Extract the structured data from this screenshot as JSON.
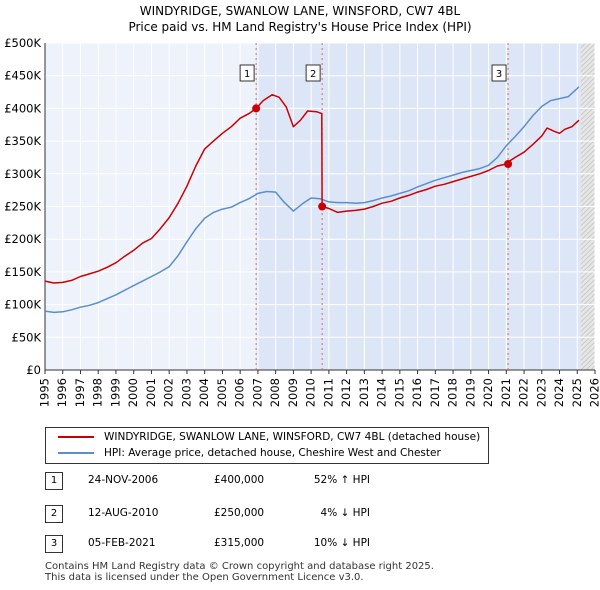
{
  "chart_data": {
    "type": "line",
    "title": "WINDYRIDGE, SWANLOW LANE, WINSFORD, CW7 4BL",
    "subtitle": "Price paid vs. HM Land Registry's House Price Index (HPI)",
    "xlabel": "",
    "ylabel": "",
    "xlim": [
      1995,
      2026
    ],
    "ylim": [
      0,
      500000
    ],
    "x_ticks": [
      "1995",
      "1996",
      "1997",
      "1998",
      "1999",
      "2000",
      "2001",
      "2002",
      "2003",
      "2004",
      "2005",
      "2006",
      "2007",
      "2008",
      "2009",
      "2010",
      "2011",
      "2012",
      "2013",
      "2014",
      "2015",
      "2016",
      "2017",
      "2018",
      "2019",
      "2020",
      "2021",
      "2022",
      "2023",
      "2024",
      "2025",
      "2026"
    ],
    "y_ticks": [
      {
        "value": 0,
        "label": "£0"
      },
      {
        "value": 50000,
        "label": "£50K"
      },
      {
        "value": 100000,
        "label": "£100K"
      },
      {
        "value": 150000,
        "label": "£150K"
      },
      {
        "value": 200000,
        "label": "£200K"
      },
      {
        "value": 250000,
        "label": "£250K"
      },
      {
        "value": 300000,
        "label": "£300K"
      },
      {
        "value": 350000,
        "label": "£350K"
      },
      {
        "value": 400000,
        "label": "£400K"
      },
      {
        "value": 450000,
        "label": "£450K"
      },
      {
        "value": 500000,
        "label": "£500K"
      }
    ],
    "grid": true,
    "ownership_start": 2006.9,
    "future_start": 2025.2,
    "series": [
      {
        "name": "WINDYRIDGE, SWANLOW LANE, WINSFORD, CW7 4BL (detached house)",
        "color": "#cc0000",
        "x": [
          1995,
          1995.5,
          1996,
          1996.5,
          1997,
          1997.5,
          1998,
          1998.5,
          1999,
          1999.5,
          2000,
          2000.5,
          2001,
          2001.5,
          2002,
          2002.5,
          2003,
          2003.5,
          2004,
          2004.5,
          2005,
          2005.5,
          2006,
          2006.5,
          2006.9,
          2007.3,
          2007.8,
          2008.2,
          2008.6,
          2009,
          2009.4,
          2009.8,
          2010.3,
          2010.6,
          2010.62,
          2011,
          2011.5,
          2012,
          2012.5,
          2013,
          2013.5,
          2014,
          2014.5,
          2015,
          2015.5,
          2016,
          2016.5,
          2017,
          2017.5,
          2018,
          2018.5,
          2019,
          2019.5,
          2020,
          2020.5,
          2021.0,
          2021.1,
          2021.5,
          2022,
          2022.5,
          2023,
          2023.3,
          2023.7,
          2024,
          2024.3,
          2024.7,
          2025.1
        ],
        "y": [
          136000,
          133000,
          134000,
          137000,
          143000,
          147000,
          151000,
          157000,
          164000,
          174000,
          183000,
          194000,
          201000,
          216000,
          233000,
          255000,
          281000,
          312000,
          338000,
          350000,
          362000,
          372000,
          385000,
          392000,
          400000,
          412000,
          421000,
          417000,
          402000,
          372000,
          382000,
          396000,
          395000,
          392000,
          250000,
          247000,
          241000,
          243000,
          244000,
          246000,
          250000,
          255000,
          258000,
          263000,
          267000,
          272000,
          276000,
          281000,
          284000,
          288000,
          292000,
          296000,
          300000,
          305000,
          312000,
          315000,
          318000,
          325000,
          333000,
          345000,
          358000,
          370000,
          365000,
          362000,
          368000,
          372000,
          382000
        ]
      },
      {
        "name": "HPI: Average price, detached house, Cheshire West and Chester",
        "color": "#5b8fcb",
        "x": [
          1995,
          1995.5,
          1996,
          1996.5,
          1997,
          1997.5,
          1998,
          1998.5,
          1999,
          1999.5,
          2000,
          2000.5,
          2001,
          2001.5,
          2002,
          2002.5,
          2003,
          2003.5,
          2004,
          2004.5,
          2005,
          2005.5,
          2006,
          2006.5,
          2007,
          2007.5,
          2008,
          2008.5,
          2009,
          2009.5,
          2010,
          2010.5,
          2011,
          2011.5,
          2012,
          2012.5,
          2013,
          2013.5,
          2014,
          2014.5,
          2015,
          2015.5,
          2016,
          2016.5,
          2017,
          2017.5,
          2018,
          2018.5,
          2019,
          2019.5,
          2020,
          2020.5,
          2021,
          2021.5,
          2022,
          2022.5,
          2023,
          2023.5,
          2024,
          2024.5,
          2025.1
        ],
        "y": [
          90000,
          88000,
          89000,
          92000,
          96000,
          99000,
          103000,
          109000,
          115000,
          122000,
          129000,
          136000,
          143000,
          150000,
          158000,
          175000,
          196000,
          216000,
          232000,
          241000,
          246000,
          249000,
          256000,
          262000,
          270000,
          273000,
          272000,
          256000,
          243000,
          254000,
          263000,
          262000,
          257000,
          256000,
          256000,
          255000,
          256000,
          259000,
          263000,
          266000,
          270000,
          274000,
          280000,
          285000,
          290000,
          294000,
          298000,
          302000,
          305000,
          308000,
          313000,
          325000,
          343000,
          357000,
          372000,
          389000,
          403000,
          412000,
          415000,
          418000,
          433000
        ]
      }
    ],
    "transactions": [
      {
        "label": "1",
        "x": 2006.9,
        "y": 400000
      },
      {
        "label": "2",
        "x": 2010.62,
        "y": 250000
      },
      {
        "label": "3",
        "x": 2021.1,
        "y": 315000
      }
    ]
  },
  "legend": {
    "property": "WINDYRIDGE, SWANLOW LANE, WINSFORD, CW7 4BL (detached house)",
    "hpi": "HPI: Average price, detached house, Cheshire West and Chester"
  },
  "table": [
    {
      "num": "1",
      "date": "24-NOV-2006",
      "price": "£400,000",
      "hpi": "52% ↑ HPI"
    },
    {
      "num": "2",
      "date": "12-AUG-2010",
      "price": "£250,000",
      "hpi": "4% ↓ HPI"
    },
    {
      "num": "3",
      "date": "05-FEB-2021",
      "price": "£315,000",
      "hpi": "10% ↓ HPI"
    }
  ],
  "footer": {
    "line1": "Contains HM Land Registry data © Crown copyright and database right 2025.",
    "line2": "This data is licensed under the Open Government Licence v3.0."
  },
  "colors": {
    "property": "#cc0000",
    "hpi": "#5b8fcb",
    "ownership_shade": "#dde6f7",
    "grid": "#ffffff",
    "plot_bg": "#eef2fb"
  }
}
